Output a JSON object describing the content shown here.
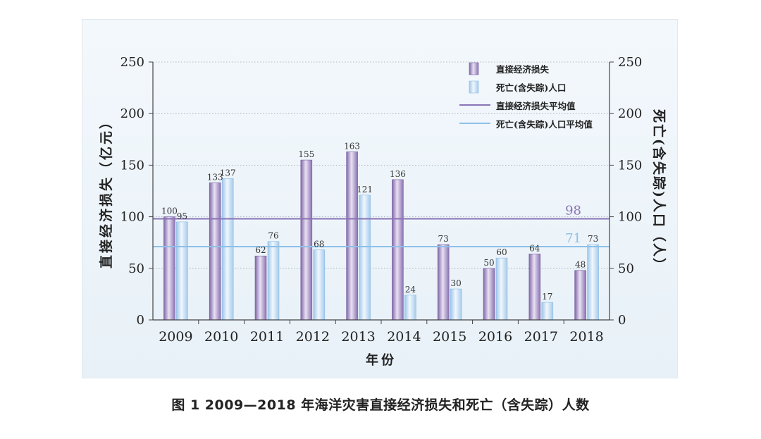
{
  "caption": "图 1 2009—2018 年海洋灾害直接经济损失和死亡（含失踪）人数",
  "chart_data": {
    "type": "bar",
    "categories": [
      "2009",
      "2010",
      "2011",
      "2012",
      "2013",
      "2014",
      "2015",
      "2016",
      "2017",
      "2018"
    ],
    "series": [
      {
        "name": "直接经济损失",
        "axis": "left",
        "color": "#a58ec0",
        "values": [
          100,
          133,
          62,
          155,
          163,
          136,
          73,
          50,
          64,
          48
        ]
      },
      {
        "name": "死亡(含失踪)人口",
        "axis": "right",
        "color": "#b9d6ef",
        "values": [
          95,
          137,
          76,
          68,
          121,
          24,
          30,
          60,
          17,
          73
        ]
      }
    ],
    "reference_lines": [
      {
        "name": "直接经济损失平均值",
        "value": 98,
        "label": "98",
        "color": "#8a74b6"
      },
      {
        "name": "死亡(含失踪)人口平均值",
        "value": 71,
        "label": "71",
        "color": "#8ec0e6"
      }
    ],
    "xlabel": "年份",
    "ylabel_left": "直接经济损失（亿元）",
    "ylabel_right": "死亡(含失踪)人口（人）",
    "ylim": [
      0,
      250
    ],
    "yticks": [
      0,
      50,
      100,
      150,
      200,
      250
    ],
    "grid": "horizontal dotted",
    "legend_position": "top-right"
  }
}
